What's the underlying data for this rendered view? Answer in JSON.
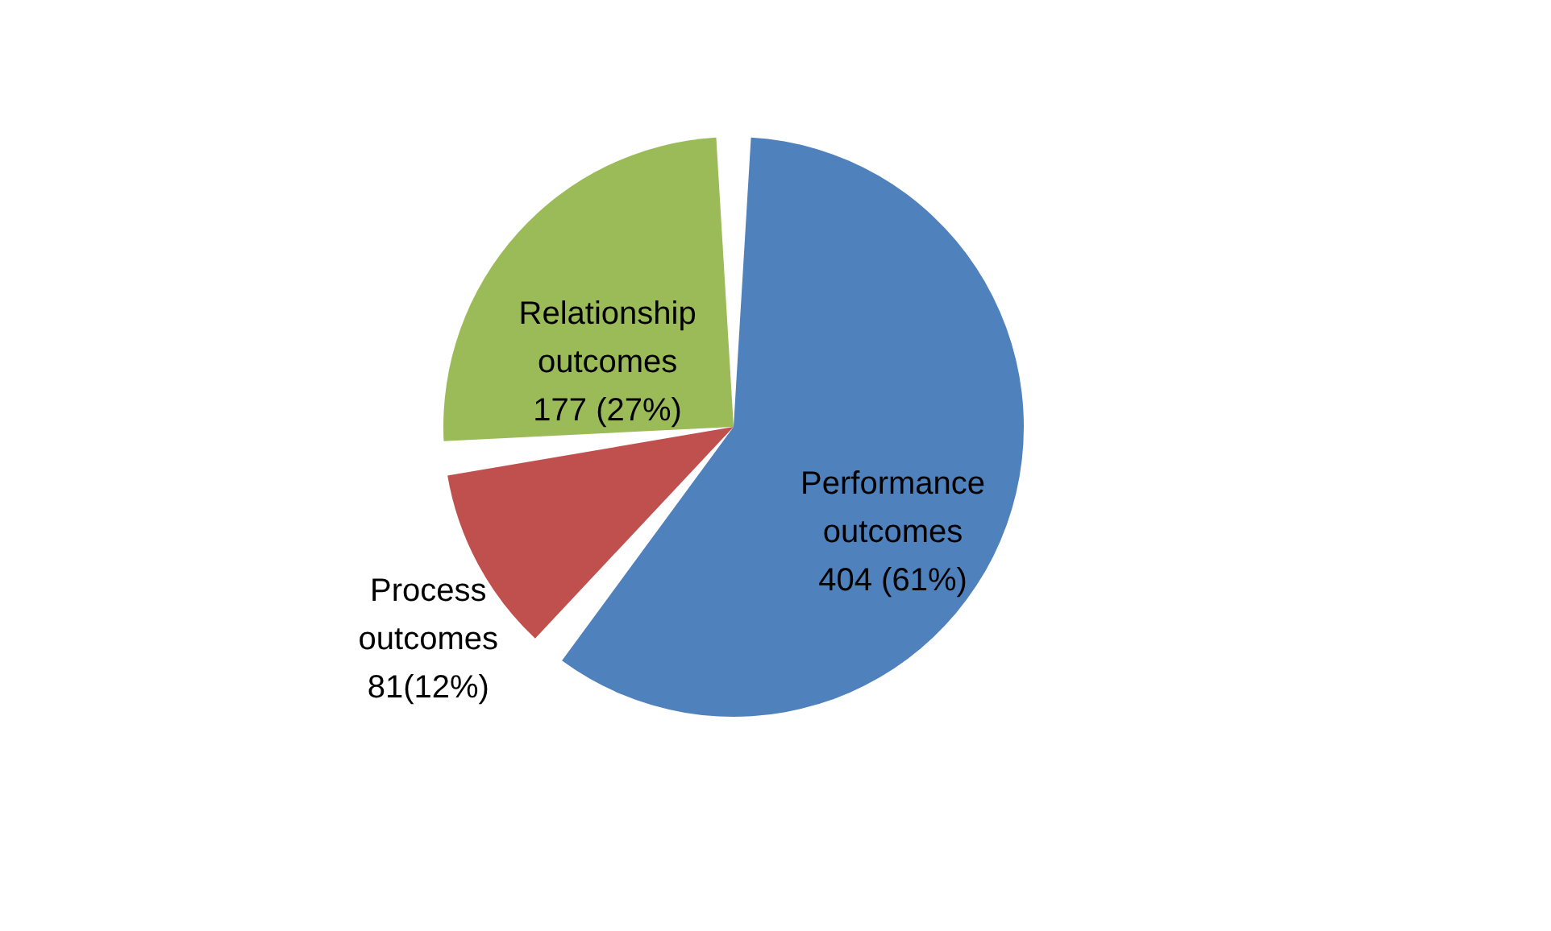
{
  "chart_data": {
    "type": "pie",
    "categories": [
      "Performance outcomes",
      "Process outcomes",
      "Relationship outcomes"
    ],
    "values": [
      404,
      81,
      177
    ],
    "value_labels": [
      "404 (61%)",
      "81(12%)",
      "177 (27%)"
    ],
    "colors": [
      "#4f81bd",
      "#c0504d",
      "#9bbb59"
    ],
    "legend": false
  }
}
